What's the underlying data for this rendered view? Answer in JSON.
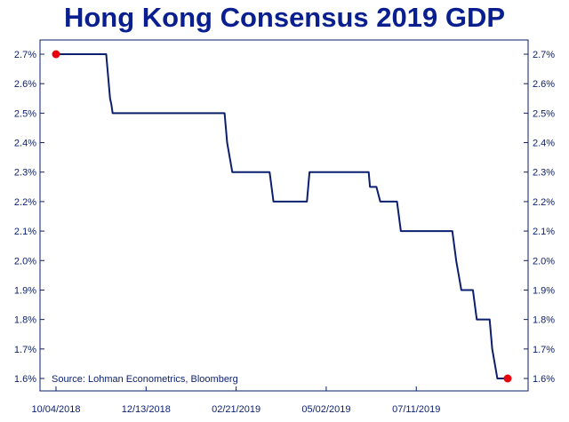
{
  "chart_data": {
    "type": "line",
    "title": "Hong Kong Consensus 2019 GDP",
    "source": "Source: Lohman Econometrics, Bloomberg",
    "xlabel": "",
    "ylabel": "",
    "x_range": [
      "2018-10-04",
      "2019-09-20"
    ],
    "x_ticks": [
      "10/04/2018",
      "12/13/2018",
      "02/21/2019",
      "05/02/2019",
      "07/11/2019"
    ],
    "x_tick_dates": [
      "2018-10-04",
      "2018-12-13",
      "2019-02-21",
      "2019-05-02",
      "2019-07-11"
    ],
    "ylim": [
      1.6,
      2.7
    ],
    "y_ticks": [
      1.6,
      1.7,
      1.8,
      1.9,
      2.0,
      2.1,
      2.2,
      2.3,
      2.4,
      2.5,
      2.6,
      2.7
    ],
    "y_tick_labels": [
      "1.6%",
      "1.7%",
      "1.8%",
      "1.9%",
      "2.0%",
      "2.1%",
      "2.2%",
      "2.3%",
      "2.4%",
      "2.5%",
      "2.6%",
      "2.7%"
    ],
    "y_axes": "left-and-right",
    "grid": false,
    "line_color": "#0a1f6e",
    "endpoint_color": "#e8000a",
    "title_color": "#0a1f8f",
    "series": [
      {
        "points": [
          [
            "2018-10-04",
            2.7
          ],
          [
            "2018-11-12",
            2.7
          ],
          [
            "2018-11-14",
            2.6
          ],
          [
            "2018-11-15",
            2.55
          ],
          [
            "2018-11-16",
            2.53
          ],
          [
            "2018-11-17",
            2.5
          ],
          [
            "2019-02-12",
            2.5
          ],
          [
            "2019-02-13",
            2.45
          ],
          [
            "2019-02-14",
            2.4
          ],
          [
            "2019-02-16",
            2.35
          ],
          [
            "2019-02-18",
            2.3
          ],
          [
            "2019-03-19",
            2.3
          ],
          [
            "2019-03-22",
            2.2
          ],
          [
            "2019-04-17",
            2.2
          ],
          [
            "2019-04-19",
            2.3
          ],
          [
            "2019-06-04",
            2.3
          ],
          [
            "2019-06-05",
            2.25
          ],
          [
            "2019-06-10",
            2.25
          ],
          [
            "2019-06-13",
            2.2
          ],
          [
            "2019-06-26",
            2.2
          ],
          [
            "2019-06-29",
            2.1
          ],
          [
            "2019-08-08",
            2.1
          ],
          [
            "2019-08-11",
            2.0
          ],
          [
            "2019-08-13",
            1.95
          ],
          [
            "2019-08-15",
            1.9
          ],
          [
            "2019-08-24",
            1.9
          ],
          [
            "2019-08-27",
            1.8
          ],
          [
            "2019-09-06",
            1.8
          ],
          [
            "2019-09-08",
            1.7
          ],
          [
            "2019-09-10",
            1.65
          ],
          [
            "2019-09-12",
            1.6
          ],
          [
            "2019-09-20",
            1.6
          ]
        ]
      }
    ],
    "endpoints": [
      {
        "x": "2018-10-04",
        "y": 2.7
      },
      {
        "x": "2019-09-20",
        "y": 1.6
      }
    ]
  }
}
